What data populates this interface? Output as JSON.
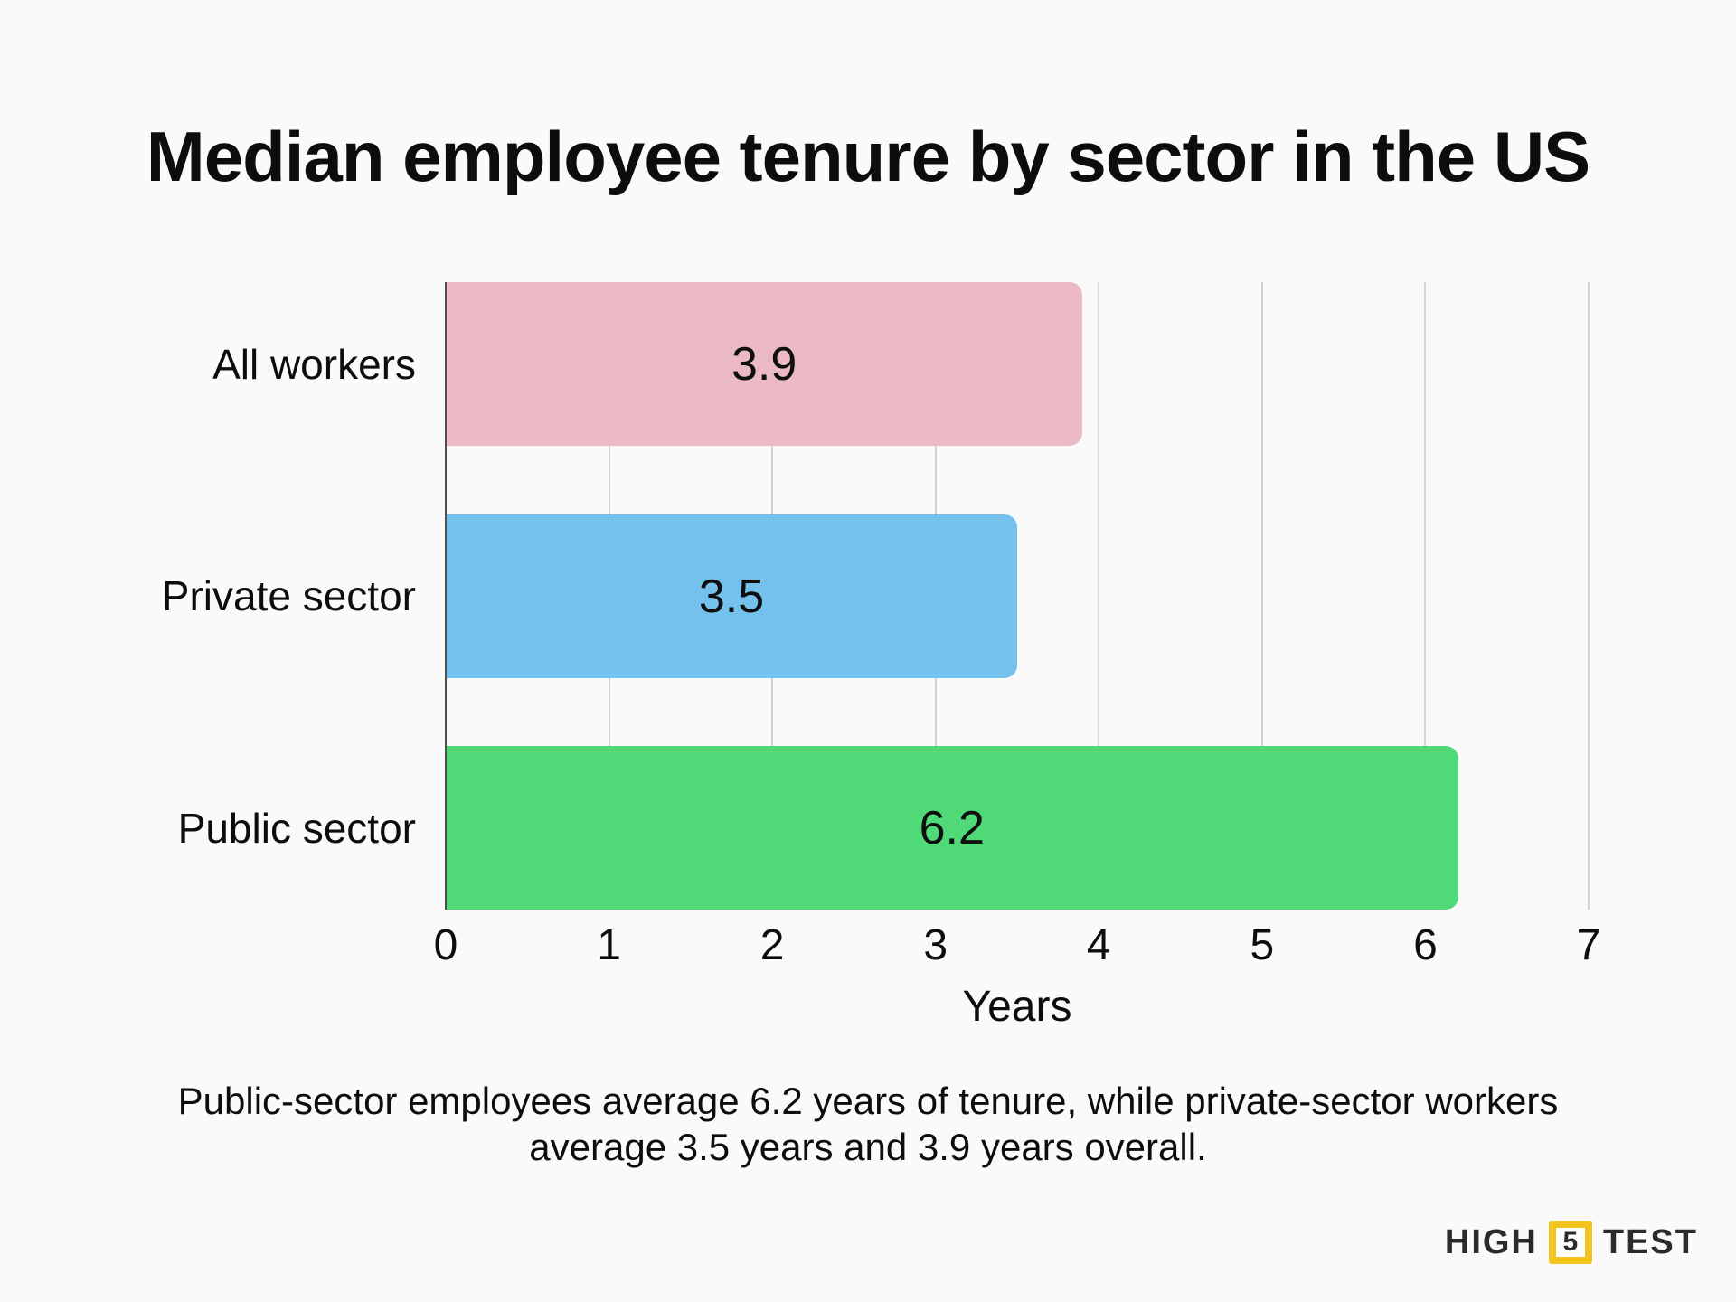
{
  "page": {
    "background": "#fafafa"
  },
  "title": "Median employee tenure by sector in the US",
  "chart_data": {
    "type": "bar",
    "orientation": "horizontal",
    "title": "Median employee tenure by sector in the US",
    "categories": [
      "All workers",
      "Private sector",
      "Public sector"
    ],
    "values": [
      3.9,
      3.5,
      6.2
    ],
    "value_labels": [
      "3.9",
      "3.5",
      "6.2"
    ],
    "bar_colors": [
      "#ecbac5",
      "#74c1ee",
      "#4fd977"
    ],
    "xlabel": "Years",
    "xlim": [
      0,
      7
    ],
    "x_ticks": [
      "0",
      "1",
      "2",
      "3",
      "4",
      "5",
      "6",
      "7"
    ],
    "grid": true,
    "gridline_color": "#d2d2d2",
    "axis_line_color": "#4f4f4f",
    "legend": "none"
  },
  "caption_lines": [
    "Public-sector employees average 6.2 years of tenure, while private-sector workers",
    "average 3.5 years and 3.9 years overall."
  ],
  "logo": {
    "word1": "HIGH",
    "number": "5",
    "word2": "TEST",
    "accent_color": "#f3c41c"
  }
}
